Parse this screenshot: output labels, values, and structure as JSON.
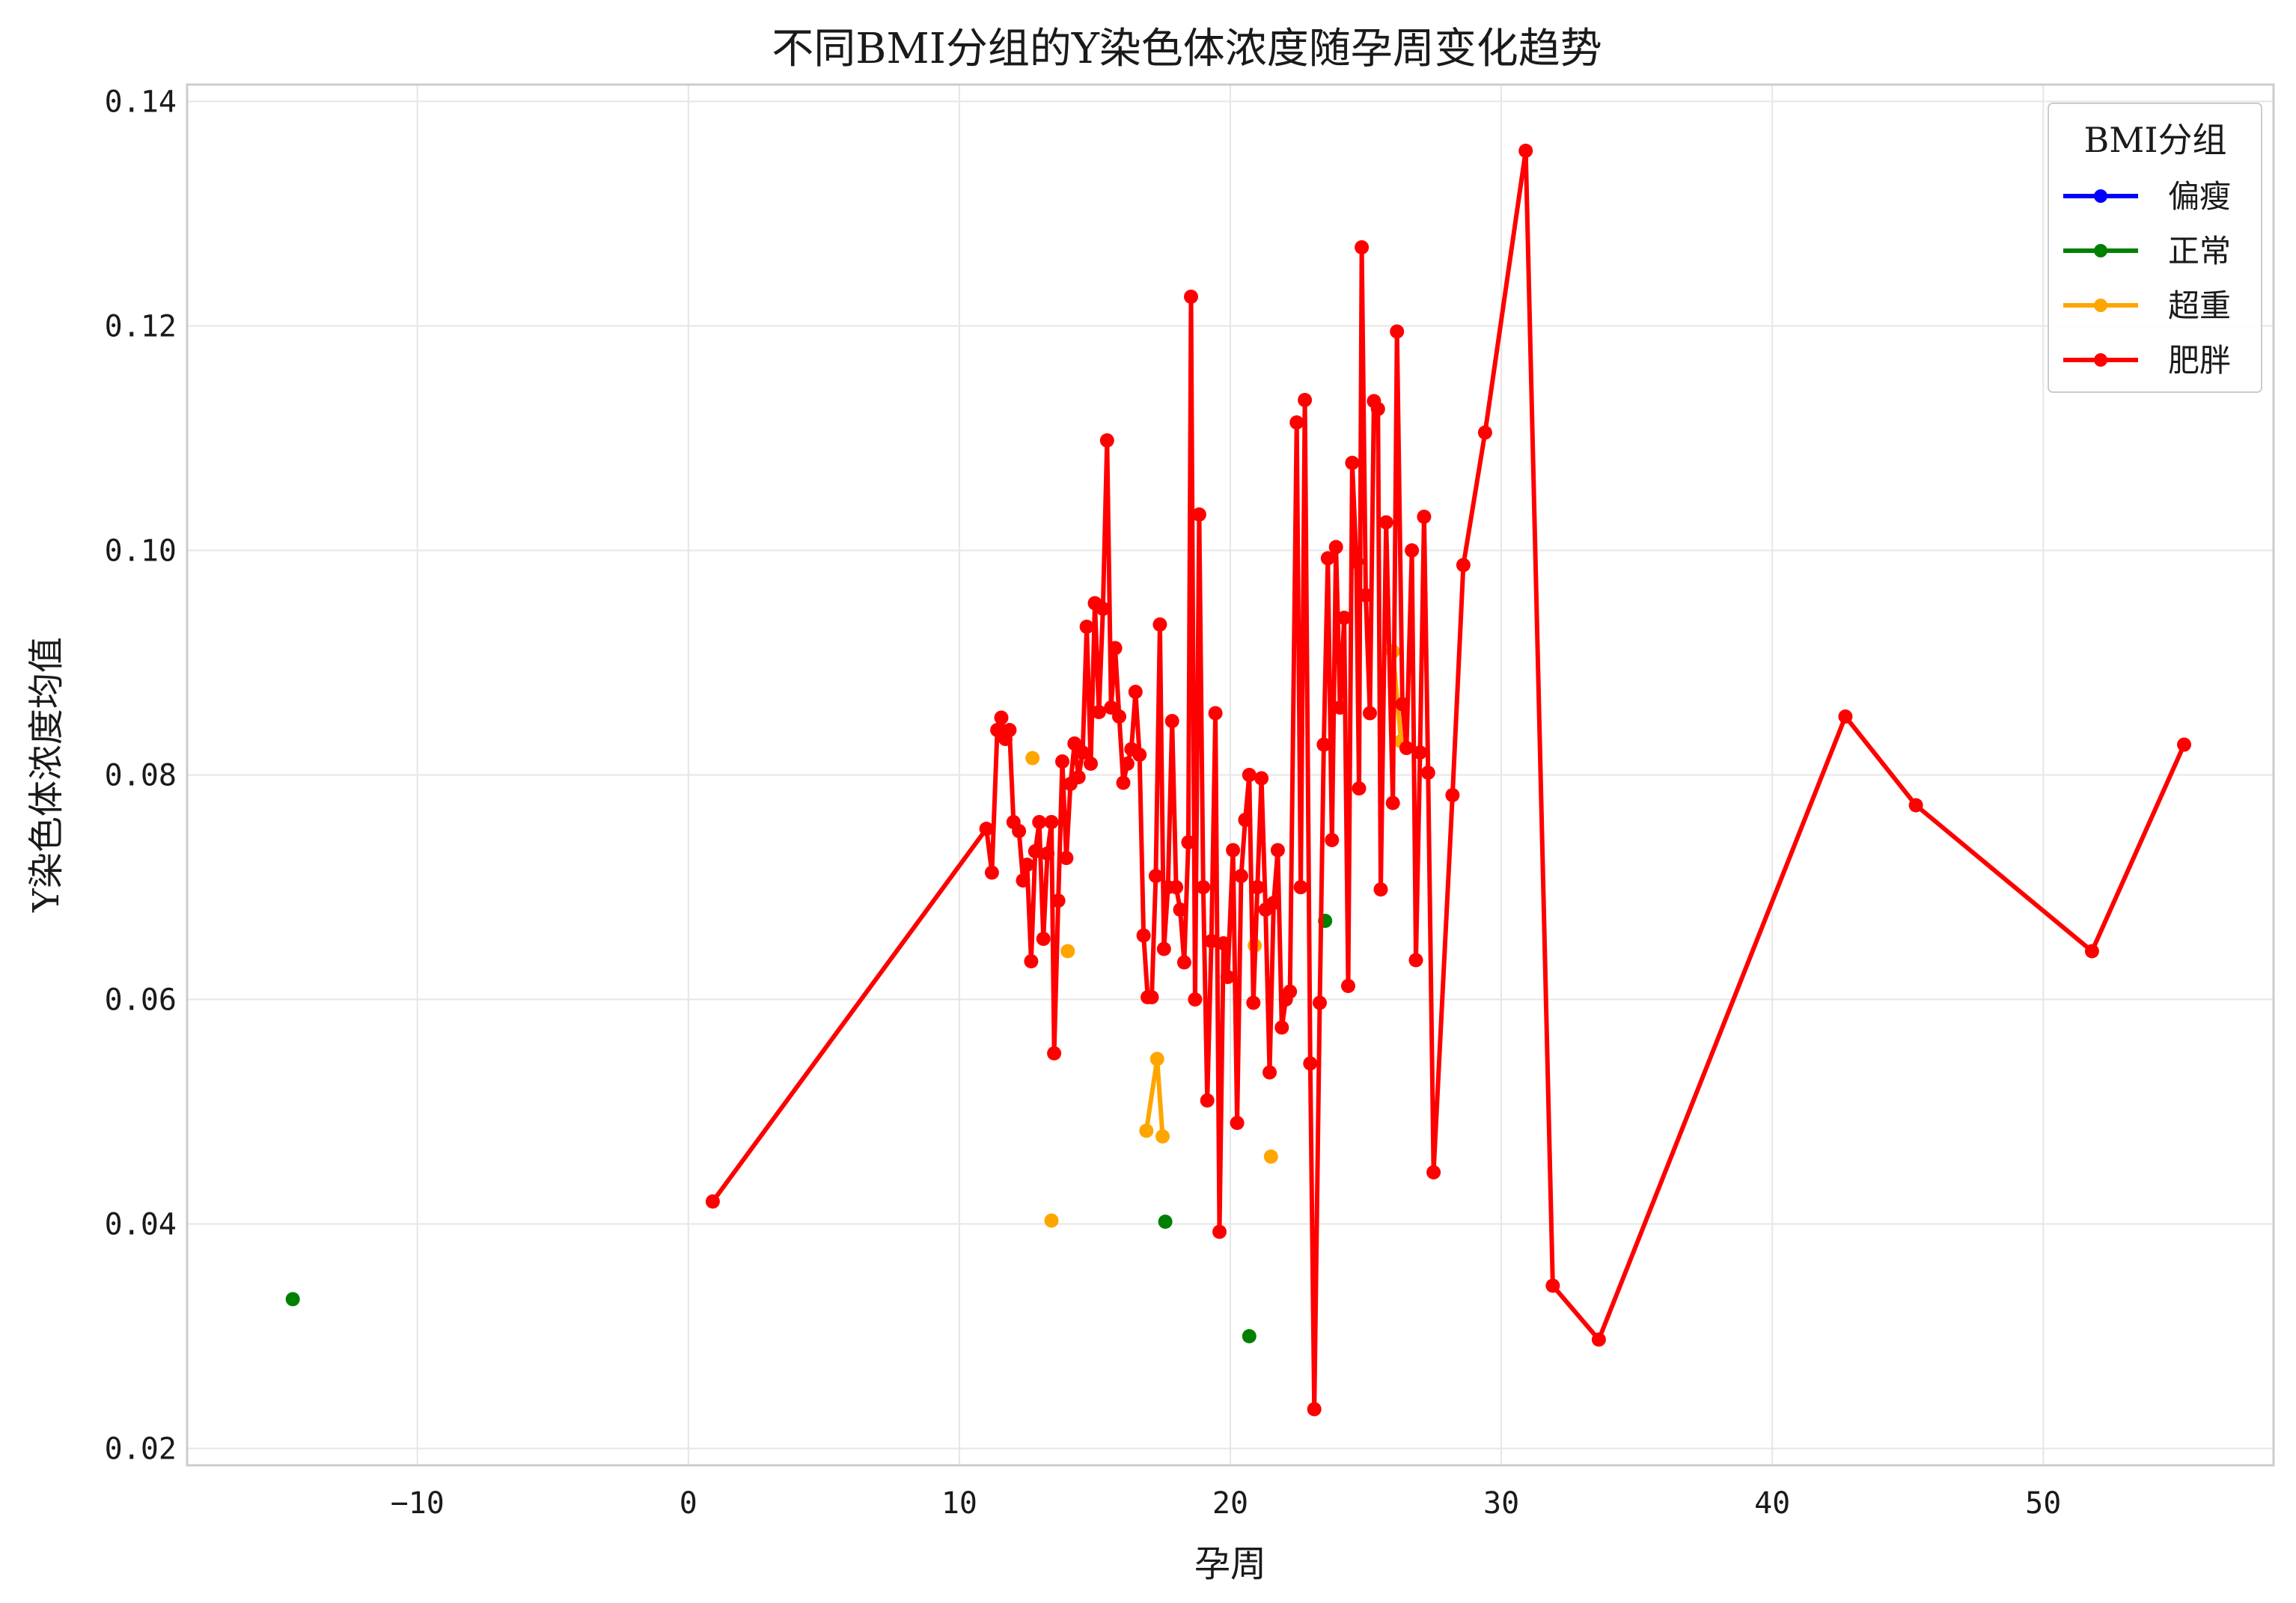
{
  "chart_data": {
    "type": "line",
    "title": "不同BMI分组的Y染色体浓度随孕周变化趋势",
    "xlabel": "孕周",
    "ylabel": "Y染色体浓度均值",
    "xlim": [
      -18.5,
      58.5
    ],
    "ylim": [
      0.0185,
      0.1415
    ],
    "xticks": [
      -10,
      0,
      10,
      20,
      30,
      40,
      50
    ],
    "xtick_labels": [
      "−10",
      "0",
      "10",
      "20",
      "30",
      "40",
      "50"
    ],
    "yticks": [
      0.02,
      0.04,
      0.06,
      0.08,
      0.1,
      0.12,
      0.14
    ],
    "ytick_labels": [
      "0.02",
      "0.04",
      "0.06",
      "0.08",
      "0.10",
      "0.12",
      "0.14"
    ],
    "grid": true,
    "legend": {
      "title": "BMI分组",
      "position": "top-right"
    },
    "series": [
      {
        "name": "偏瘦",
        "color": "#0000ff",
        "segments": []
      },
      {
        "name": "正常",
        "color": "#008000",
        "segments": [
          [
            [
              -14.6,
              0.0333
            ]
          ],
          [
            [
              17.6,
              0.0402
            ]
          ],
          [
            [
              20.7,
              0.03
            ]
          ],
          [
            [
              23.5,
              0.067
            ]
          ]
        ]
      },
      {
        "name": "超重",
        "color": "#ffa500",
        "segments": [
          [
            [
              12.7,
              0.0815
            ]
          ],
          [
            [
              13.4,
              0.0403
            ]
          ],
          [
            [
              14.0,
              0.0643
            ]
          ],
          [
            [
              16.9,
              0.0483
            ],
            [
              17.3,
              0.0547
            ],
            [
              17.5,
              0.0478
            ]
          ],
          [
            [
              20.9,
              0.0648
            ]
          ],
          [
            [
              21.5,
              0.046
            ]
          ],
          [
            [
              26.0,
              0.091
            ],
            [
              26.3,
              0.083
            ]
          ]
        ]
      },
      {
        "name": "肥胖",
        "color": "#ff0000",
        "segments": [
          [
            [
              0.9,
              0.042
            ],
            [
              11.0,
              0.0752
            ],
            [
              11.2,
              0.0713
            ],
            [
              11.4,
              0.084
            ],
            [
              11.55,
              0.0851
            ],
            [
              11.7,
              0.0832
            ],
            [
              11.85,
              0.084
            ],
            [
              12.0,
              0.0758
            ],
            [
              12.2,
              0.075
            ],
            [
              12.35,
              0.0706
            ],
            [
              12.5,
              0.072
            ],
            [
              12.65,
              0.0634
            ],
            [
              12.8,
              0.0732
            ],
            [
              12.95,
              0.0758
            ],
            [
              13.1,
              0.0654
            ],
            [
              13.25,
              0.073
            ],
            [
              13.4,
              0.0758
            ],
            [
              13.5,
              0.0552
            ],
            [
              13.65,
              0.0688
            ],
            [
              13.8,
              0.0812
            ],
            [
              13.95,
              0.0726
            ],
            [
              14.1,
              0.0792
            ],
            [
              14.25,
              0.0828
            ],
            [
              14.4,
              0.0798
            ],
            [
              14.55,
              0.082
            ],
            [
              14.7,
              0.0932
            ],
            [
              14.85,
              0.081
            ],
            [
              15.0,
              0.0953
            ],
            [
              15.15,
              0.0856
            ],
            [
              15.3,
              0.0948
            ],
            [
              15.45,
              0.1098
            ],
            [
              15.6,
              0.086
            ],
            [
              15.75,
              0.0913
            ],
            [
              15.9,
              0.0852
            ],
            [
              16.05,
              0.0793
            ],
            [
              16.2,
              0.081
            ],
            [
              16.35,
              0.0823
            ],
            [
              16.5,
              0.0874
            ],
            [
              16.65,
              0.0818
            ],
            [
              16.8,
              0.0657
            ],
            [
              16.95,
              0.0602
            ],
            [
              17.1,
              0.0602
            ],
            [
              17.25,
              0.071
            ],
            [
              17.4,
              0.0934
            ],
            [
              17.55,
              0.0645
            ],
            [
              17.7,
              0.07
            ],
            [
              17.85,
              0.0848
            ],
            [
              18.0,
              0.07
            ],
            [
              18.15,
              0.068
            ],
            [
              18.3,
              0.0633
            ],
            [
              18.45,
              0.074
            ],
            [
              18.55,
              0.1226
            ],
            [
              18.7,
              0.06
            ],
            [
              18.85,
              0.1032
            ],
            [
              19.0,
              0.07
            ],
            [
              19.15,
              0.051
            ],
            [
              19.3,
              0.0652
            ],
            [
              19.45,
              0.0855
            ],
            [
              19.6,
              0.0393
            ],
            [
              19.75,
              0.065
            ],
            [
              19.9,
              0.062
            ],
            [
              20.1,
              0.0733
            ],
            [
              20.25,
              0.049
            ],
            [
              20.4,
              0.071
            ],
            [
              20.55,
              0.076
            ],
            [
              20.7,
              0.08
            ],
            [
              20.85,
              0.0597
            ],
            [
              21.0,
              0.07
            ],
            [
              21.15,
              0.0797
            ],
            [
              21.3,
              0.068
            ],
            [
              21.45,
              0.0535
            ],
            [
              21.6,
              0.0686
            ],
            [
              21.75,
              0.0733
            ],
            [
              21.9,
              0.0575
            ],
            [
              22.05,
              0.06
            ],
            [
              22.2,
              0.0607
            ],
            [
              22.45,
              0.1114
            ],
            [
              22.6,
              0.07
            ],
            [
              22.75,
              0.1134
            ],
            [
              22.95,
              0.0543
            ],
            [
              23.1,
              0.0235
            ],
            [
              23.3,
              0.0597
            ],
            [
              23.45,
              0.0827
            ],
            [
              23.6,
              0.0993
            ],
            [
              23.75,
              0.0742
            ],
            [
              23.9,
              0.1003
            ],
            [
              24.05,
              0.086
            ],
            [
              24.2,
              0.094
            ],
            [
              24.35,
              0.0612
            ],
            [
              24.5,
              0.1078
            ],
            [
              24.65,
              0.099
            ],
            [
              24.75,
              0.0788
            ],
            [
              24.85,
              0.127
            ],
            [
              25.0,
              0.096
            ],
            [
              25.15,
              0.0855
            ],
            [
              25.3,
              0.1133
            ],
            [
              25.45,
              0.1126
            ],
            [
              25.55,
              0.0698
            ],
            [
              25.75,
              0.1025
            ],
            [
              26.0,
              0.0775
            ],
            [
              26.15,
              0.1195
            ],
            [
              26.35,
              0.0863
            ],
            [
              26.5,
              0.0824
            ],
            [
              26.7,
              0.1
            ],
            [
              26.85,
              0.0635
            ],
            [
              27.0,
              0.082
            ],
            [
              27.15,
              0.103
            ],
            [
              27.3,
              0.0802
            ],
            [
              27.5,
              0.0446
            ],
            [
              28.2,
              0.0782
            ],
            [
              28.6,
              0.0987
            ],
            [
              29.4,
              0.1105
            ],
            [
              30.9,
              0.1356
            ],
            [
              31.9,
              0.0345
            ],
            [
              33.6,
              0.0297
            ],
            [
              42.7,
              0.0852
            ],
            [
              45.3,
              0.0773
            ],
            [
              51.8,
              0.0643
            ],
            [
              55.2,
              0.0827
            ]
          ]
        ]
      }
    ]
  }
}
